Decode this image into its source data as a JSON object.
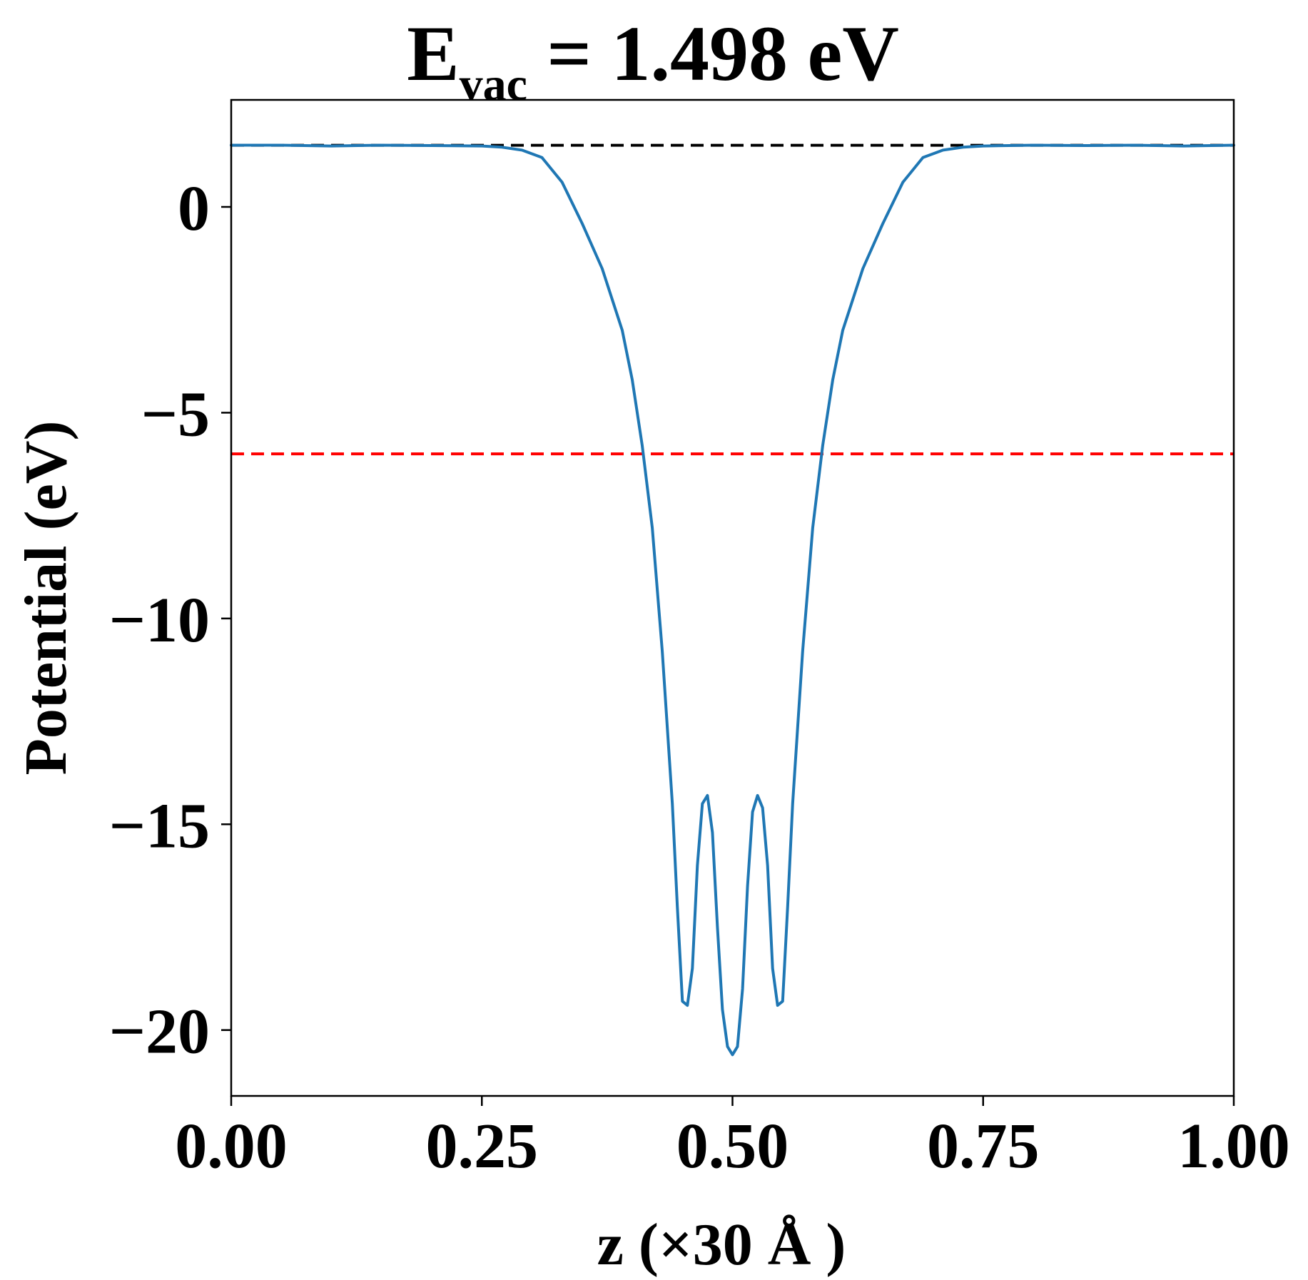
{
  "chart_data": {
    "type": "line",
    "title": {
      "main": "E",
      "subscript": "vac",
      "rest": " = 1.498 eV"
    },
    "xlabel": "z (×30 Å )",
    "ylabel": "Potential (eV)",
    "xlim": [
      0.0,
      1.0
    ],
    "ylim": [
      -21.6,
      2.6
    ],
    "x_ticks": [
      {
        "value": 0.0,
        "label": "0.00"
      },
      {
        "value": 0.25,
        "label": "0.25"
      },
      {
        "value": 0.5,
        "label": "0.50"
      },
      {
        "value": 0.75,
        "label": "0.75"
      },
      {
        "value": 1.0,
        "label": "1.00"
      }
    ],
    "y_ticks": [
      {
        "value": 0,
        "label": "0"
      },
      {
        "value": -5,
        "label": "−5"
      },
      {
        "value": -10,
        "label": "−10"
      },
      {
        "value": -15,
        "label": "−15"
      },
      {
        "value": -20,
        "label": "−20"
      }
    ],
    "grid": false,
    "reference_lines": [
      {
        "y": 1.498,
        "color": "#000000",
        "style": "dashed"
      },
      {
        "y": -6.0,
        "color": "#ff0000",
        "style": "dashed"
      }
    ],
    "series": [
      {
        "color": "#1f77b4",
        "x": [
          0.0,
          0.05,
          0.1,
          0.15,
          0.2,
          0.25,
          0.27,
          0.29,
          0.31,
          0.33,
          0.35,
          0.37,
          0.39,
          0.4,
          0.41,
          0.42,
          0.43,
          0.44,
          0.445,
          0.45,
          0.455,
          0.46,
          0.465,
          0.47,
          0.475,
          0.48,
          0.485,
          0.49,
          0.495,
          0.5,
          0.505,
          0.51,
          0.515,
          0.52,
          0.525,
          0.53,
          0.535,
          0.54,
          0.545,
          0.55,
          0.555,
          0.56,
          0.57,
          0.58,
          0.59,
          0.6,
          0.61,
          0.63,
          0.65,
          0.67,
          0.69,
          0.71,
          0.73,
          0.75,
          0.8,
          0.85,
          0.9,
          0.95,
          1.0
        ],
        "y": [
          1.5,
          1.5,
          1.48,
          1.5,
          1.49,
          1.48,
          1.45,
          1.38,
          1.2,
          0.6,
          -0.4,
          -1.5,
          -3.0,
          -4.2,
          -5.8,
          -7.8,
          -10.8,
          -14.5,
          -17.0,
          -19.3,
          -19.4,
          -18.5,
          -16.0,
          -14.5,
          -14.3,
          -15.2,
          -17.5,
          -19.5,
          -20.4,
          -20.6,
          -20.4,
          -19.0,
          -16.5,
          -14.7,
          -14.3,
          -14.6,
          -16.0,
          -18.5,
          -19.4,
          -19.3,
          -17.0,
          -14.5,
          -10.8,
          -7.8,
          -5.8,
          -4.2,
          -3.0,
          -1.5,
          -0.4,
          0.6,
          1.2,
          1.38,
          1.45,
          1.48,
          1.5,
          1.49,
          1.5,
          1.48,
          1.5
        ]
      }
    ]
  }
}
